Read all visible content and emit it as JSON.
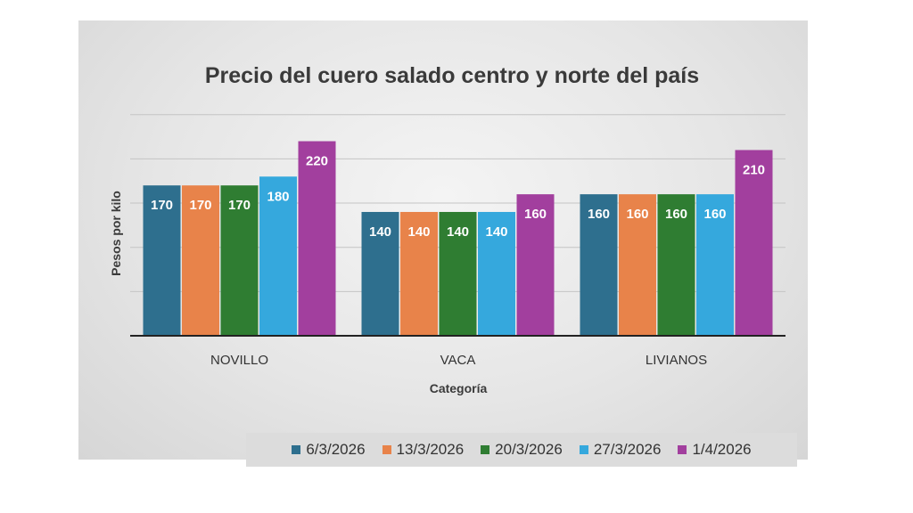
{
  "chart_data": {
    "type": "bar",
    "title": "Precio del cuero salado centro y norte del país",
    "xlabel": "Categoría",
    "ylabel": "Pesos por kilo",
    "categories": [
      "NOVILLO",
      "VACA",
      "LIVIANOS"
    ],
    "series": [
      {
        "name": "6/3/2026",
        "color": "#2e6f8e",
        "values": [
          170,
          140,
          160
        ]
      },
      {
        "name": "13/3/2026",
        "color": "#e8834a",
        "values": [
          170,
          140,
          160
        ]
      },
      {
        "name": "20/3/2026",
        "color": "#2f7d32",
        "values": [
          170,
          140,
          160
        ]
      },
      {
        "name": "27/3/2026",
        "color": "#35a8dd",
        "values": [
          180,
          140,
          160
        ]
      },
      {
        "name": "1/4/2026",
        "color": "#a23f9e",
        "values": [
          220,
          160,
          210
        ]
      }
    ],
    "ylim": [
      0,
      250
    ],
    "y_tick_step": 50,
    "y_tick_labels_shown": false,
    "grid": true,
    "data_labels": true,
    "legend_position": "bottom"
  }
}
